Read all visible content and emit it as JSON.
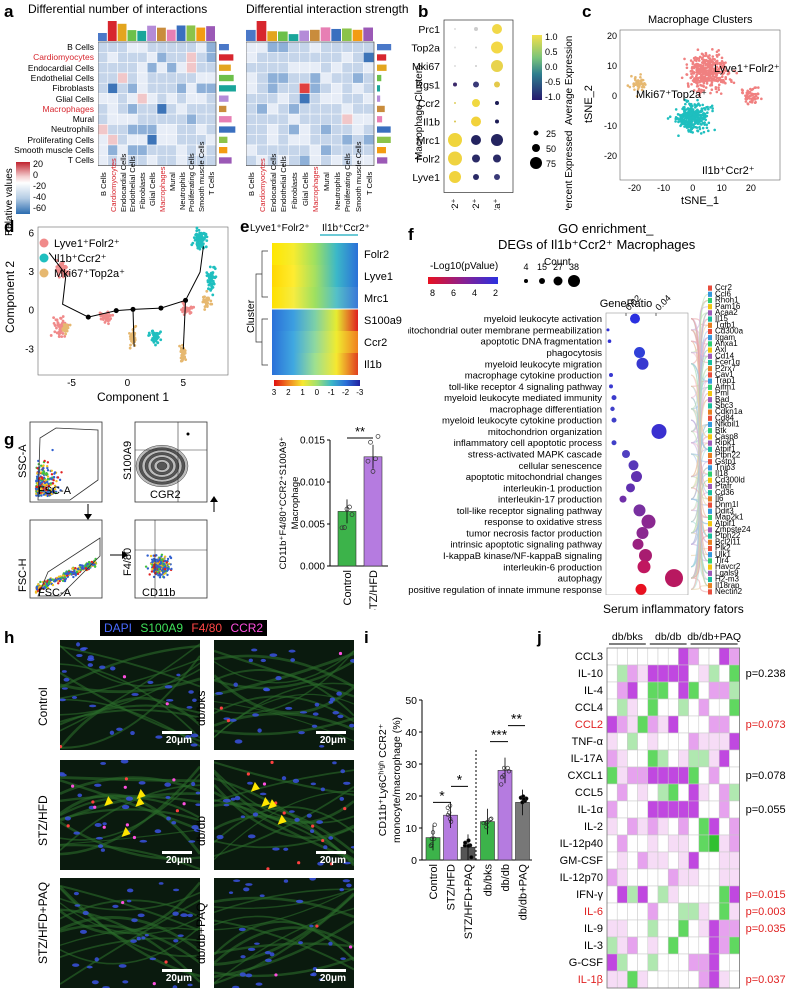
{
  "panels": {
    "a": {
      "label": "a",
      "title_left": "Differential number of interactions",
      "title_right": "Differential interaction strength",
      "rows": [
        "B Cells",
        "Cardiomyocytes",
        "Endocardial Cells",
        "Endothelial Cells",
        "Fibroblasts",
        "Glial Cells",
        "Macrophages",
        "Mural",
        "Neutrophils",
        "Proliferating Cells",
        "Smooth muscle Cells",
        "T Cells"
      ],
      "highlight_rows": [
        "Cardiomyocytes",
        "Macrophages"
      ],
      "left_top_ticks": [
        "200",
        "100",
        "0"
      ],
      "left_side_ticks": [
        "0",
        "100",
        "200"
      ],
      "right_side_ticks": [
        "0",
        "2",
        "4",
        "6"
      ],
      "legend_title": "Relative values",
      "legend_ticks": [
        "20",
        "0",
        "-20",
        "-40",
        "-60"
      ]
    },
    "b": {
      "label": "b",
      "genes": [
        "Prc1",
        "Top2a",
        "Mki67",
        "Rgs1",
        "Ccr2",
        "Il1b",
        "Mrc1",
        "Folr2",
        "Lyve1"
      ],
      "clusters": [
        "Lyve1⁺Folr2⁺",
        "Il1b⁺Ccr2⁺",
        "Mki67⁺Top2a⁺"
      ],
      "ylabel": "Macrophage Clusters",
      "cbar_title": "Average Expression",
      "cbar_ticks": [
        "1.0",
        "0.5",
        "0.0",
        "-0.5",
        "-1.0"
      ],
      "size_title": "Percent Expressed",
      "size_ticks": [
        "25",
        "50",
        "75"
      ]
    },
    "c": {
      "label": "c",
      "title": "Macrophage Clusters",
      "xlabel": "tSNE_1",
      "ylabel": "tSNE_2",
      "xticks": [
        "-20",
        "-10",
        "0",
        "10",
        "20"
      ],
      "yticks": [
        "20",
        "10",
        "0",
        "-10",
        "-20"
      ],
      "ann1": "Lyve1⁺Folr2⁺",
      "ann2": "Mki67⁺Top2a⁺",
      "ann3": "Il1b⁺Ccr2⁺"
    },
    "d": {
      "label": "d",
      "xlabel": "Component 1",
      "ylabel": "Component 2",
      "xticks": [
        "-5",
        "0",
        "5"
      ],
      "yticks": [
        "6",
        "3",
        "0",
        "-3"
      ],
      "legend": [
        "Lyve1⁺Folr2⁺",
        "Il1b⁺Ccr2⁺",
        "Mki67⁺Top2a⁺"
      ]
    },
    "e": {
      "label": "e",
      "from": "Lyve1⁺Folr2⁺",
      "to": "Il1b⁺Ccr2⁺",
      "genes": [
        "Folr2",
        "Lyve1",
        "Mrc1",
        "S100a9",
        "Ccr2",
        "Il1b"
      ],
      "side": "Cluster",
      "scale_ticks": [
        "3",
        "2",
        "1",
        "0",
        "-1",
        "-2",
        "-3"
      ]
    },
    "f": {
      "label": "f",
      "title1": "GO enrichment_",
      "title2": "DEGs of Il1b⁺Ccr2⁺ Macrophages",
      "pval_title": "-Log10(pValue)",
      "pval_ticks": [
        "8",
        "6",
        "4",
        "2"
      ],
      "count_title": "Count",
      "count_ticks": [
        "4",
        "15",
        "27",
        "38"
      ],
      "ratio_title": "GeneRatio",
      "ratio_ticks": [
        "0.02",
        "0.04"
      ],
      "terms": [
        "myeloid leukocyte activation",
        "mitochondrial outer membrane permeabilization",
        "apoptotic DNA fragmentation",
        "phagocytosis",
        "myeloid leukocyte migration",
        "macrophage cytokine production",
        "toll-like receptor 4 signaling pathway",
        "myeloid leukocyte mediated immunity",
        "macrophage differentiation",
        "myeloid leukocyte cytokine production",
        "mitochondrion organization",
        "inflammatory cell apoptotic process",
        "stress-activated MAPK cascade",
        "cellular senescence",
        "apoptotic mitochondrial changes",
        "interleukin-1 production",
        "interleukin-17 production",
        "toll-like receptor signaling pathway",
        "response to oxidative stress",
        "tumor necrosis factor production",
        "intrinsic apoptotic signaling pathway",
        "I-kappaB kinase/NF-kappaB signaling",
        "interleukin-6 production",
        "autophagy",
        "positive regulation of innate immune response"
      ],
      "genes": [
        "Ccr2",
        "Ccl6",
        "Rhoh1",
        "Pam16",
        "Acaa2",
        "Il15",
        "Tgfb1",
        "Cd300a",
        "Itgam",
        "Anxa1",
        "Axl",
        "Cd14",
        "Fcer1g",
        "P2rx7",
        "Cav1",
        "Trap1",
        "Aifm1",
        "Pml",
        "Bad",
        "Sbc3",
        "Cdkn1a",
        "Cd84",
        "Nfkbil1",
        "Btk",
        "Casp8",
        "Ripk1",
        "Atpif1",
        "Ptpn22",
        "Gstp1",
        "Tnip3",
        "Il18",
        "Cd300ld",
        "Ptafr",
        "Cd36",
        "Il6",
        "Dnm1l",
        "Ddit3",
        "Map2k1",
        "Atpif1",
        "Zmpste24",
        "Ptpn22",
        "Bcl2l11",
        "Plk2",
        "Ulk1",
        "Tlr4",
        "Havcr2",
        "Lgals9",
        "H2-m3",
        "Il18rap",
        "Nectin2"
      ]
    },
    "g": {
      "label": "g",
      "ssc": "SSC-A",
      "fsca1": "FSC-A",
      "fsch": "FSC-H",
      "fsca2": "FSC-A",
      "s100a9": "S100A9",
      "cgr2": "CGR2",
      "f480": "F4/80",
      "cd11b": "CD11b",
      "ylabel1": "CD11b⁺F4/80⁺CCR2⁺S100A9⁺",
      "ylabel2": "Macrophage",
      "yticks": [
        "0.015",
        "0.010",
        "0.005",
        "0.000"
      ],
      "groups": [
        "Control",
        "STZ/HFD"
      ],
      "sig": "**"
    },
    "h": {
      "label": "h",
      "stains": [
        "DAPI",
        "S100A9",
        "F4/80",
        "CCR2"
      ],
      "rows_left": [
        "Control",
        "STZ/HFD",
        "STZ/HFD+PAQ"
      ],
      "rows_right": [
        "db/bks",
        "db/db",
        "db/db+PAQ"
      ],
      "scale": "20μm"
    },
    "i": {
      "label": "i",
      "ylabel1": "CD11b⁺Ly6Cʰⁱᵍʰ CCR2⁺",
      "ylabel2": "monocyte/macrophage (%)",
      "yticks": [
        "50",
        "40",
        "30",
        "20",
        "10",
        "0"
      ],
      "groups": [
        "Control",
        "STZ/HFD",
        "STZ/HFD+PAQ",
        "db/bks",
        "db/db",
        "db/db+PAQ"
      ],
      "sig": [
        "*",
        "*",
        "***",
        "**"
      ]
    },
    "j": {
      "label": "j",
      "title": "Serum inflammatory fators",
      "groups": [
        "db/bks",
        "db/db",
        "db/db+PAQ"
      ],
      "rows": [
        "CCL3",
        "IL-10",
        "IL-4",
        "CCL4",
        "CCL2",
        "TNF-α",
        "IL-17A",
        "CXCL1",
        "CCL5",
        "IL-1α",
        "IL-2",
        "IL-12p40",
        "GM-CSF",
        "IL-12p70",
        "IFN-γ",
        "IL-6",
        "IL-9",
        "IL-3",
        "G-CSF",
        "IL-1β"
      ],
      "red_rows": [
        "CCL2",
        "IL-6",
        "IL-1β"
      ],
      "pvals": [
        {
          "row": "IL-10",
          "p": "p=0.238",
          "red": false
        },
        {
          "row": "CCL2",
          "p": "p=0.073",
          "red": true
        },
        {
          "row": "CXCL1",
          "p": "p=0.078",
          "red": false
        },
        {
          "row": "IL-1α",
          "p": "p=0.055",
          "red": false
        },
        {
          "row": "IFN-γ",
          "p": "p=0.015",
          "red": true
        },
        {
          "row": "IL-6",
          "p": "p=0.003",
          "red": true
        },
        {
          "row": "IL-9",
          "p": "p=0.035",
          "red": true
        },
        {
          "row": "IL-1β",
          "p": "p=0.037",
          "red": true
        }
      ],
      "legend_title": "Fold Change",
      "legend_ticks": [
        "0",
        "0.5",
        "1.0",
        "5",
        "10",
        "15",
        "20"
      ]
    }
  },
  "chart_data": [
    {
      "type": "bar",
      "panel": "g",
      "categories": [
        "Control",
        "STZ/HFD"
      ],
      "values": [
        0.0065,
        0.013
      ],
      "ylim": [
        0,
        0.015
      ],
      "ylabel": "CD11b⁺F4/80⁺CCR2⁺S100A9⁺ Macrophage",
      "colors": [
        "#3cb34a",
        "#b57be0"
      ]
    },
    {
      "type": "bar",
      "panel": "i",
      "categories": [
        "Control",
        "STZ/HFD",
        "STZ/HFD+PAQ",
        "db/bks",
        "db/db",
        "db/db+PAQ"
      ],
      "values": [
        7,
        14,
        4,
        12,
        28,
        18
      ],
      "ylim": [
        0,
        50
      ],
      "ylabel": "CD11b⁺Ly6Cʰⁱᵍʰ CCR2⁺ monocyte/macrophage (%)",
      "colors": [
        "#3cb34a",
        "#b57be0",
        "#555555",
        "#3cb34a",
        "#b57be0",
        "#777777"
      ]
    }
  ]
}
